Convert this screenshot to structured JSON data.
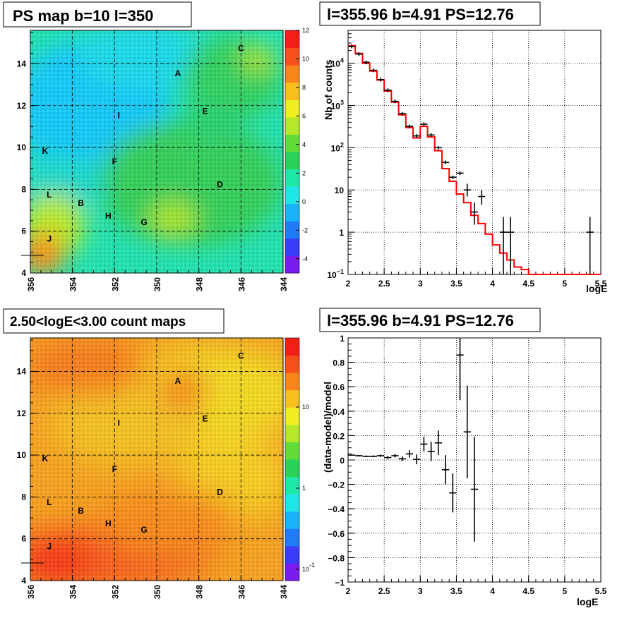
{
  "colors": {
    "frame": "#000000",
    "grid": "#000000",
    "fit_line": "#ff0000",
    "data": "#000000",
    "palette": [
      "#7a1cf0",
      "#3a3cf8",
      "#1f7cf6",
      "#19b4f8",
      "#1ee6e6",
      "#1ee8a8",
      "#2ad25a",
      "#62dc3a",
      "#b6e82a",
      "#f0f020",
      "#f8c01c",
      "#f8861a",
      "#f8501a",
      "#f41e18"
    ]
  },
  "map_labels": [
    {
      "text": "C",
      "l": 346,
      "b": 14.6
    },
    {
      "text": "A",
      "l": 349,
      "b": 13.4
    },
    {
      "text": "E",
      "l": 347.7,
      "b": 11.6
    },
    {
      "text": "I",
      "l": 351.8,
      "b": 11.4
    },
    {
      "text": "K",
      "l": 355.3,
      "b": 9.7
    },
    {
      "text": "F",
      "l": 352,
      "b": 9.2
    },
    {
      "text": "D",
      "l": 347,
      "b": 8.1
    },
    {
      "text": "L",
      "l": 355.1,
      "b": 7.6
    },
    {
      "text": "B",
      "l": 353.6,
      "b": 7.2
    },
    {
      "text": "H",
      "l": 352.3,
      "b": 6.6
    },
    {
      "text": "G",
      "l": 350.6,
      "b": 6.3
    },
    {
      "text": "J",
      "l": 355.1,
      "b": 5.5
    }
  ],
  "chart_data": [
    {
      "type": "heatmap",
      "title": "PS map b=10 l=350",
      "x_ticks": [
        "356",
        "354",
        "352",
        "350",
        "348",
        "346",
        "344"
      ],
      "y_ticks": [
        "4",
        "6",
        "8",
        "10",
        "12",
        "14"
      ],
      "xlim": [
        356,
        344
      ],
      "ylim": [
        4,
        15.6
      ],
      "colorbar": {
        "min": -5,
        "max": 12,
        "ticks": [
          "12",
          "10",
          "8",
          "6",
          "4",
          "2",
          "0",
          "-2",
          "-4"
        ]
      },
      "grid": true
    },
    {
      "type": "line",
      "title": "l=355.96 b=4.91 PS=12.76",
      "xlabel": "logE",
      "ylabel": "Nb of counts",
      "y_log": true,
      "xlim": [
        2,
        5.5
      ],
      "ylim": [
        0.1,
        60000
      ],
      "x_ticks": [
        "2",
        "2.5",
        "3",
        "3.5",
        "4",
        "4.5",
        "5",
        "5.5"
      ],
      "y_ticks": [
        {
          "base": "10",
          "exp": "4"
        },
        {
          "base": "10",
          "exp": "3"
        },
        {
          "base": "10",
          "exp": "2"
        },
        {
          "base": "10",
          "exp": ""
        },
        {
          "base": "1",
          "exp": ""
        },
        {
          "base": "10",
          "exp": "−1"
        }
      ],
      "model_bin_width": 0.1,
      "model_edges": [
        2.0,
        2.1,
        2.2,
        2.3,
        2.4,
        2.5,
        2.6,
        2.7,
        2.8,
        2.9,
        3.0,
        3.1,
        3.2,
        3.3,
        3.4,
        3.5,
        3.6,
        3.7,
        3.8,
        3.9,
        4.0,
        4.1,
        4.2,
        4.3,
        4.4,
        4.5,
        4.6,
        4.7,
        4.8,
        4.9,
        5.0,
        5.1,
        5.2,
        5.3,
        5.4,
        5.5
      ],
      "model_values": [
        26000,
        17000,
        10000,
        6500,
        4000,
        2200,
        1200,
        600,
        300,
        170,
        320,
        180,
        85,
        32,
        16,
        8,
        5.0,
        2.5,
        1.6,
        0.9,
        0.5,
        0.32,
        0.22,
        0.15,
        0.13,
        0.1,
        0.1,
        0.1,
        0.1,
        0.1,
        0.1,
        0.1,
        0.1,
        0.1,
        0.1
      ],
      "data_points": [
        {
          "x": 2.05,
          "y": 25000
        },
        {
          "x": 2.15,
          "y": 16500
        },
        {
          "x": 2.25,
          "y": 10500
        },
        {
          "x": 2.35,
          "y": 6800
        },
        {
          "x": 2.45,
          "y": 4100
        },
        {
          "x": 2.55,
          "y": 2300
        },
        {
          "x": 2.65,
          "y": 1250
        },
        {
          "x": 2.75,
          "y": 640
        },
        {
          "x": 2.85,
          "y": 320
        },
        {
          "x": 2.95,
          "y": 190
        },
        {
          "x": 3.05,
          "y": 360
        },
        {
          "x": 3.15,
          "y": 200
        },
        {
          "x": 3.25,
          "y": 100
        },
        {
          "x": 3.35,
          "y": 45
        },
        {
          "x": 3.45,
          "y": 20
        },
        {
          "x": 3.55,
          "y": 25
        },
        {
          "x": 3.65,
          "y": 10,
          "ylo": 7,
          "yhi": 14
        },
        {
          "x": 3.75,
          "y": 3,
          "ylo": 1.5,
          "yhi": 5
        },
        {
          "x": 3.85,
          "y": 7,
          "ylo": 4.5,
          "yhi": 10
        },
        {
          "x": 4.15,
          "y": 1,
          "ylo": 0.1,
          "yhi": 2.3
        },
        {
          "x": 4.25,
          "y": 1,
          "ylo": 0.1,
          "yhi": 2.3
        },
        {
          "x": 5.35,
          "y": 1,
          "ylo": 0.1,
          "yhi": 2.3
        }
      ],
      "grid": true
    },
    {
      "type": "heatmap",
      "title": "2.50<logE<3.00 count maps",
      "x_ticks": [
        "356",
        "354",
        "352",
        "350",
        "348",
        "346",
        "344"
      ],
      "y_ticks": [
        "4",
        "6",
        "8",
        "10",
        "12",
        "14"
      ],
      "xlim": [
        356,
        344
      ],
      "ylim": [
        4,
        15.6
      ],
      "colorbar": {
        "log": true,
        "ticks": [
          {
            "base": "10",
            "exp": ""
          },
          {
            "base": "1",
            "exp": ""
          },
          {
            "base": "10",
            "exp": "-1"
          }
        ]
      },
      "grid": true
    },
    {
      "type": "scatter",
      "title": "l=355.96 b=4.91 PS=12.76",
      "xlabel": "logE",
      "ylabel": "(data-model)/model",
      "xlim": [
        2,
        5.5
      ],
      "ylim": [
        -1,
        1
      ],
      "x_ticks": [
        "2",
        "2.5",
        "3",
        "3.5",
        "4",
        "4.5",
        "5",
        "5.5"
      ],
      "y_ticks": [
        "1",
        "0.8",
        "0.6",
        "0.4",
        "0.2",
        "0",
        "−0.2",
        "−0.4",
        "−0.6",
        "−0.8",
        "−1"
      ],
      "points": [
        {
          "x": 2.05,
          "y": 0.04,
          "err": 0.005
        },
        {
          "x": 2.15,
          "y": 0.035,
          "err": 0.006
        },
        {
          "x": 2.25,
          "y": 0.03,
          "err": 0.007
        },
        {
          "x": 2.35,
          "y": 0.03,
          "err": 0.008
        },
        {
          "x": 2.45,
          "y": 0.035,
          "err": 0.01
        },
        {
          "x": 2.55,
          "y": 0.02,
          "err": 0.012
        },
        {
          "x": 2.65,
          "y": 0.035,
          "err": 0.015
        },
        {
          "x": 2.75,
          "y": 0.01,
          "err": 0.02
        },
        {
          "x": 2.85,
          "y": 0.05,
          "err": 0.03
        },
        {
          "x": 2.95,
          "y": 0.005,
          "err": 0.04
        },
        {
          "x": 3.05,
          "y": 0.13,
          "err": 0.06
        },
        {
          "x": 3.15,
          "y": 0.07,
          "err": 0.08
        },
        {
          "x": 3.25,
          "y": 0.14,
          "err": 0.1
        },
        {
          "x": 3.35,
          "y": -0.08,
          "err": 0.12
        },
        {
          "x": 3.45,
          "y": -0.27,
          "err": 0.16
        },
        {
          "x": 3.55,
          "y": 0.86,
          "err": 0.37
        },
        {
          "x": 3.65,
          "y": 0.23,
          "err": 0.38
        },
        {
          "x": 3.75,
          "y": -0.24,
          "err": 0.43
        }
      ],
      "grid": true
    }
  ]
}
